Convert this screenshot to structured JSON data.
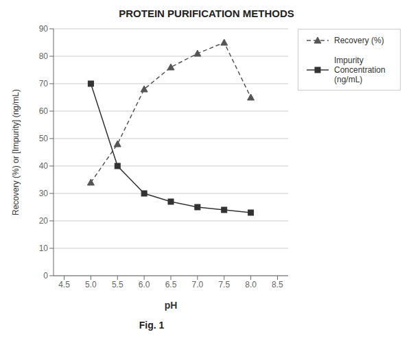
{
  "chart_data": {
    "type": "line",
    "title": "PROTEIN PURIFICATION METHODS",
    "x_label": "pH",
    "y_label": "Recovery (%) or [Impurity] (ng/mL)",
    "x": [
      5.0,
      5.5,
      6.0,
      6.5,
      7.0,
      7.5,
      8.0
    ],
    "series": [
      {
        "name": "Recovery (%)",
        "color": "#555555",
        "marker": "triangle",
        "line_style": "dashed",
        "values": [
          34,
          48,
          68,
          76,
          81,
          85,
          65
        ]
      },
      {
        "name": "Impurity\nConcentration\n(ng/mL)",
        "color": "#333333",
        "marker": "square",
        "line_style": "solid",
        "values": [
          70,
          40,
          30,
          27,
          25,
          24,
          23
        ]
      }
    ],
    "xlim": [
      4.3,
      8.7
    ],
    "xticks": [
      4.5,
      {
        "value": 5.0,
        "label": "5.0"
      },
      5.5,
      {
        "value": 6.0,
        "label": "6.0"
      },
      6.5,
      {
        "value": 7.0,
        "label": "7.0"
      },
      7.5,
      {
        "value": 8.0,
        "label": "8.0"
      },
      8.5
    ],
    "ylim": [
      0,
      90
    ],
    "yticks": [
      0,
      10,
      20,
      30,
      40,
      50,
      60,
      70,
      80,
      90
    ],
    "grid": "y",
    "legend": "right",
    "annotations": [
      "Fig. 1"
    ]
  }
}
